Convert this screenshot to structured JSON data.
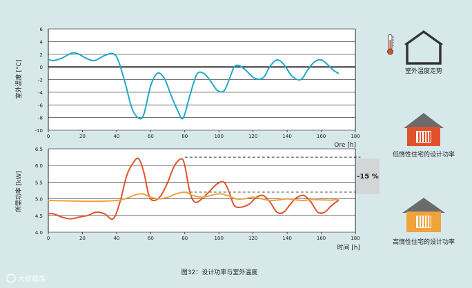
{
  "caption": "图32：设计功率与室外温度",
  "watermark": "大敏踏族",
  "colors": {
    "background": "#d7e8eb",
    "temperature": "#1ea9c9",
    "low_inertia": "#e0522b",
    "high_inertia": "#efa33a",
    "house_outline": "#333333",
    "roof_low": "#6b6b6b",
    "body_low": "#e0522b",
    "roof_high": "#6b6b6b",
    "body_high": "#efa33a"
  },
  "icons": {
    "top": "house-outline-icon",
    "middle": "house-red-radiator-icon",
    "bottom": "house-orange-radiator-icon",
    "thermometer": "thermometer-icon"
  },
  "legend": {
    "top": "室外温度走势",
    "middle": "低惰性住宅的设计功率",
    "bottom": "高惰性住宅的设计功率"
  },
  "annotation": {
    "percent": "-15 %"
  },
  "chart_data": [
    {
      "type": "line",
      "ylabel": "室外温度 [°C]",
      "xlabel": "Ore [h]",
      "xlim": [
        0,
        180
      ],
      "ylim": [
        -10,
        6
      ],
      "xticks": [
        0,
        20,
        40,
        60,
        80,
        100,
        120,
        140,
        160,
        180
      ],
      "yticks": [
        6,
        4,
        2,
        0,
        -2,
        -4,
        -6,
        -8,
        -10
      ],
      "grid": true,
      "series": [
        {
          "color": "#1ea9c9",
          "x": [
            0,
            3,
            8,
            14,
            18,
            22,
            27,
            33,
            38,
            41,
            45,
            49,
            53,
            56,
            60,
            64,
            68,
            72,
            76,
            79,
            83,
            87,
            91,
            95,
            99,
            103,
            106,
            109,
            112,
            116,
            121,
            126,
            130,
            134,
            138,
            143,
            148,
            152,
            156,
            160,
            164,
            167,
            170
          ],
          "y": [
            1.2,
            1.0,
            1.4,
            2.2,
            2.0,
            1.4,
            1.0,
            1.8,
            2.1,
            1.0,
            -2.5,
            -6.5,
            -8.1,
            -7.5,
            -3.0,
            -1.0,
            -1.8,
            -4.5,
            -7.0,
            -8.1,
            -4.5,
            -1.2,
            -1.0,
            -2.2,
            -3.7,
            -3.8,
            -2.0,
            0.0,
            0.2,
            -0.6,
            -1.8,
            -1.7,
            0.1,
            1.1,
            0.4,
            -1.5,
            -2.0,
            -0.5,
            0.8,
            1.1,
            0.3,
            -0.5,
            -1.0
          ]
        }
      ]
    },
    {
      "type": "line",
      "ylabel": "所需功率 [kW]",
      "xlabel": "时间 [h]",
      "xlim": [
        0,
        180
      ],
      "ylim": [
        4.0,
        6.5
      ],
      "xticks": [
        0,
        20,
        40,
        60,
        80,
        100,
        120,
        140,
        160,
        180
      ],
      "yticks": [
        6.5,
        6.0,
        5.5,
        5.0,
        4.5,
        4.0
      ],
      "grid": true,
      "reference_lines": [
        {
          "y": 6.25,
          "x_from": 80,
          "x_to": 183,
          "style": "dashed"
        },
        {
          "y": 5.2,
          "x_from": 80,
          "x_to": 183,
          "style": "dashed"
        }
      ],
      "series": [
        {
          "color": "#e0522b",
          "x": [
            0,
            3,
            8,
            13,
            18,
            23,
            28,
            33,
            38,
            42,
            46,
            50,
            53,
            56,
            59,
            62,
            66,
            70,
            74,
            78,
            80,
            83,
            86,
            90,
            95,
            99,
            103,
            106,
            109,
            113,
            118,
            122,
            126,
            130,
            134,
            138,
            142,
            146,
            150,
            154,
            158,
            162,
            166,
            170
          ],
          "y": [
            4.55,
            4.55,
            4.45,
            4.4,
            4.45,
            4.5,
            4.6,
            4.55,
            4.4,
            4.9,
            5.7,
            6.1,
            6.2,
            5.8,
            5.1,
            4.95,
            5.1,
            5.5,
            6.0,
            6.2,
            6.0,
            5.2,
            4.9,
            5.0,
            5.25,
            5.45,
            5.5,
            5.2,
            4.8,
            4.75,
            4.85,
            5.05,
            5.1,
            4.9,
            4.6,
            4.6,
            4.85,
            5.05,
            5.1,
            4.9,
            4.6,
            4.6,
            4.8,
            4.95
          ]
        },
        {
          "color": "#efa33a",
          "x": [
            0,
            10,
            20,
            30,
            40,
            45,
            50,
            55,
            60,
            65,
            70,
            75,
            80,
            85,
            90,
            95,
            100,
            105,
            110,
            115,
            120,
            125,
            130,
            135,
            140,
            145,
            150,
            155,
            160,
            165,
            170
          ],
          "y": [
            4.95,
            4.94,
            4.93,
            4.93,
            4.95,
            5.0,
            5.1,
            5.15,
            5.05,
            5.0,
            5.05,
            5.15,
            5.2,
            5.1,
            5.05,
            5.1,
            5.15,
            5.1,
            5.0,
            5.0,
            5.05,
            5.0,
            4.95,
            4.97,
            5.0,
            4.97,
            4.95,
            4.98,
            4.97,
            4.96,
            4.98
          ]
        }
      ]
    }
  ]
}
